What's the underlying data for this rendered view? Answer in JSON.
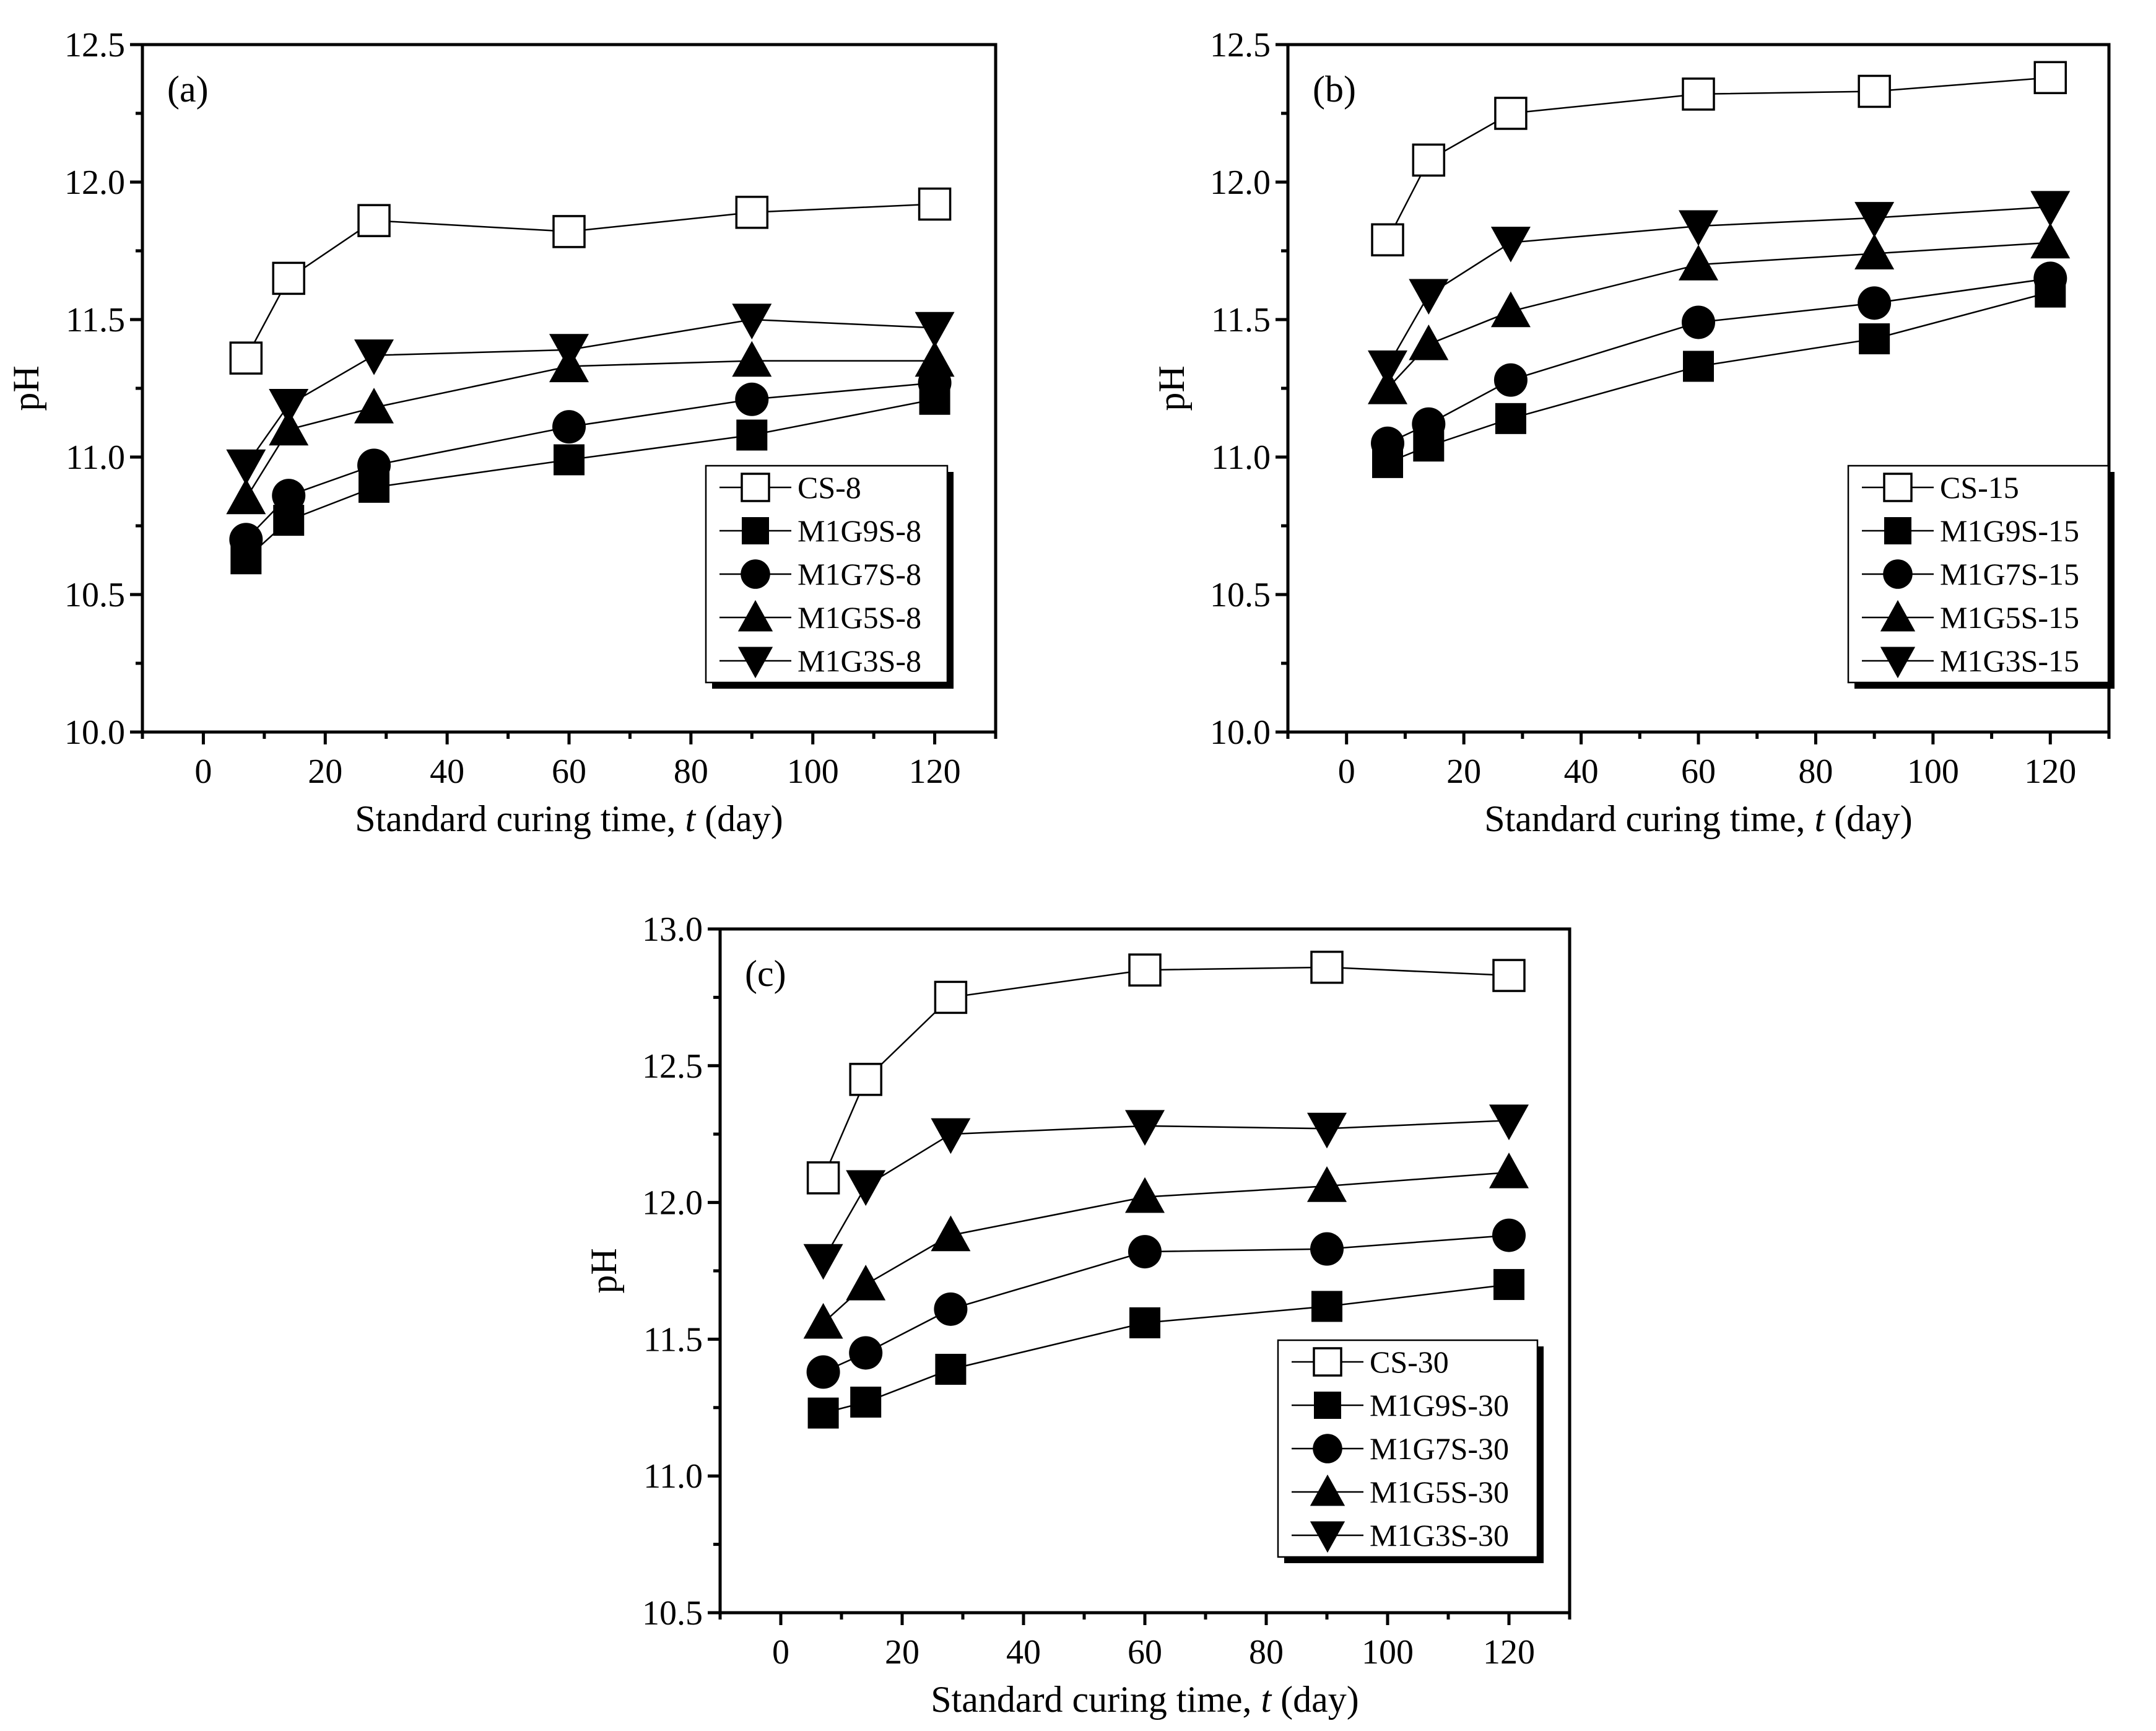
{
  "chart_data": [
    {
      "type": "line",
      "panel_label": "(a)",
      "xlabel": "Standard curing time, ",
      "xlabel_var": "t",
      "xlabel_unit": " (day)",
      "ylabel": "pH",
      "xlim": [
        -10,
        130
      ],
      "ylim": [
        10.0,
        12.5
      ],
      "xticks": [
        0,
        20,
        40,
        60,
        80,
        100,
        120
      ],
      "xtick_labels": [
        "0",
        "20",
        "40",
        "60",
        "80",
        "100",
        "120"
      ],
      "yticks": [
        10.0,
        10.5,
        11.0,
        11.5,
        12.0,
        12.5
      ],
      "ytick_labels": [
        "10.0",
        "10.5",
        "11.0",
        "11.5",
        "12.0",
        "12.5"
      ],
      "legend_position": "lower-right",
      "x": [
        7,
        14,
        28,
        60,
        90,
        120
      ],
      "series": [
        {
          "name": "CS-8",
          "marker": "square-open",
          "values": [
            11.36,
            11.65,
            11.86,
            11.82,
            11.89,
            11.92
          ]
        },
        {
          "name": "M1G9S-8",
          "marker": "square",
          "values": [
            10.63,
            10.77,
            10.89,
            10.99,
            11.08,
            11.21
          ]
        },
        {
          "name": "M1G7S-8",
          "marker": "circle",
          "values": [
            10.7,
            10.86,
            10.97,
            11.11,
            11.21,
            11.27
          ]
        },
        {
          "name": "M1G5S-8",
          "marker": "triangle-up",
          "values": [
            10.85,
            11.1,
            11.18,
            11.33,
            11.35,
            11.35
          ]
        },
        {
          "name": "M1G3S-8",
          "marker": "triangle-down",
          "values": [
            10.97,
            11.19,
            11.37,
            11.39,
            11.5,
            11.47
          ]
        }
      ]
    },
    {
      "type": "line",
      "panel_label": "(b)",
      "xlabel": "Standard curing time, ",
      "xlabel_var": "t",
      "xlabel_unit": " (day)",
      "ylabel": "pH",
      "xlim": [
        -10,
        130
      ],
      "ylim": [
        10.0,
        12.5
      ],
      "xticks": [
        0,
        20,
        40,
        60,
        80,
        100,
        120
      ],
      "xtick_labels": [
        "0",
        "20",
        "40",
        "60",
        "80",
        "100",
        "120"
      ],
      "yticks": [
        10.0,
        10.5,
        11.0,
        11.5,
        12.0,
        12.5
      ],
      "ytick_labels": [
        "10.0",
        "10.5",
        "11.0",
        "11.5",
        "12.0",
        "12.5"
      ],
      "legend_position": "lower-right",
      "x": [
        7,
        14,
        28,
        60,
        90,
        120
      ],
      "series": [
        {
          "name": "CS-15",
          "marker": "square-open",
          "values": [
            11.79,
            12.08,
            12.25,
            12.32,
            12.33,
            12.38
          ]
        },
        {
          "name": "M1G9S-15",
          "marker": "square",
          "values": [
            10.98,
            11.04,
            11.14,
            11.33,
            11.43,
            11.6
          ]
        },
        {
          "name": "M1G7S-15",
          "marker": "circle",
          "values": [
            11.05,
            11.12,
            11.28,
            11.49,
            11.56,
            11.65
          ]
        },
        {
          "name": "M1G5S-15",
          "marker": "triangle-up",
          "values": [
            11.25,
            11.41,
            11.53,
            11.7,
            11.74,
            11.78
          ]
        },
        {
          "name": "M1G3S-15",
          "marker": "triangle-down",
          "values": [
            11.33,
            11.59,
            11.78,
            11.84,
            11.87,
            11.91
          ]
        }
      ]
    },
    {
      "type": "line",
      "panel_label": "(c)",
      "xlabel": "Standard curing time, ",
      "xlabel_var": "t",
      "xlabel_unit": " (day)",
      "ylabel": "pH",
      "xlim": [
        -10,
        130
      ],
      "ylim": [
        10.5,
        13.0
      ],
      "xticks": [
        0,
        20,
        40,
        60,
        80,
        100,
        120
      ],
      "xtick_labels": [
        "0",
        "20",
        "40",
        "60",
        "80",
        "100",
        "120"
      ],
      "yticks": [
        10.5,
        11.0,
        11.5,
        12.0,
        12.5,
        13.0
      ],
      "ytick_labels": [
        "10.5",
        "11.0",
        "11.5",
        "12.0",
        "12.5",
        "13.0"
      ],
      "legend_position": "lower-right",
      "x": [
        7,
        14,
        28,
        60,
        90,
        120
      ],
      "series": [
        {
          "name": "CS-30",
          "marker": "square-open",
          "values": [
            12.09,
            12.45,
            12.75,
            12.85,
            12.86,
            12.83
          ]
        },
        {
          "name": "M1G9S-30",
          "marker": "square",
          "values": [
            11.23,
            11.27,
            11.39,
            11.56,
            11.62,
            11.7
          ]
        },
        {
          "name": "M1G7S-30",
          "marker": "circle",
          "values": [
            11.38,
            11.45,
            11.61,
            11.82,
            11.83,
            11.88
          ]
        },
        {
          "name": "M1G5S-30",
          "marker": "triangle-up",
          "values": [
            11.56,
            11.7,
            11.88,
            12.02,
            12.06,
            12.11
          ]
        },
        {
          "name": "M1G3S-30",
          "marker": "triangle-down",
          "values": [
            11.79,
            12.06,
            12.25,
            12.28,
            12.27,
            12.3
          ]
        }
      ]
    }
  ]
}
